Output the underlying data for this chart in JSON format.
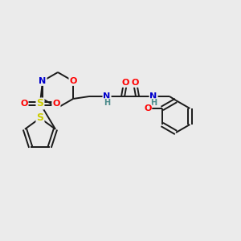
{
  "background_color": "#ebebeb",
  "bond_color": "#1a1a1a",
  "atom_colors": {
    "O": "#ff0000",
    "N": "#0000cc",
    "S_sulfonyl": "#cccc00",
    "S_thiophene": "#cccc00",
    "H": "#4a8a8a",
    "C": "#1a1a1a"
  },
  "figsize": [
    3.0,
    3.0
  ],
  "dpi": 100
}
